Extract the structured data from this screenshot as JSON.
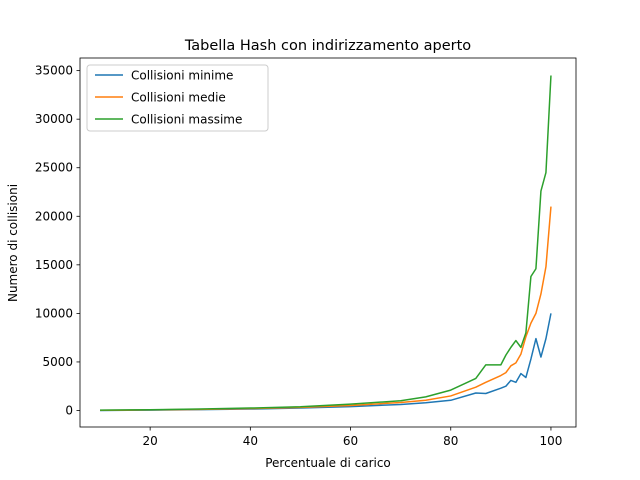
{
  "chart_data": {
    "type": "line",
    "title": "Tabella Hash con indirizzamento aperto",
    "xlabel": "Percentuale di carico",
    "ylabel": "Numero di collisioni",
    "xlim": [
      6,
      105
    ],
    "ylim": [
      -1700,
      36300
    ],
    "xticks": [
      20,
      40,
      60,
      80,
      100
    ],
    "yticks": [
      0,
      5000,
      10000,
      15000,
      20000,
      25000,
      30000,
      35000
    ],
    "grid": false,
    "legend_position": "top-left",
    "x": [
      10,
      20,
      30,
      40,
      50,
      60,
      70,
      75,
      80,
      85,
      87,
      90,
      91,
      92,
      93,
      94,
      95,
      96,
      97,
      98,
      99,
      100
    ],
    "series": [
      {
        "name": "Collisioni minime",
        "color": "#1f77b4",
        "values": [
          0,
          40,
          90,
          150,
          250,
          400,
          620,
          800,
          1050,
          1800,
          1750,
          2300,
          2500,
          3100,
          2900,
          3800,
          3400,
          5300,
          7400,
          5500,
          7400,
          10000
        ]
      },
      {
        "name": "Collisioni medie",
        "color": "#ff7f0e",
        "values": [
          20,
          60,
          120,
          200,
          320,
          520,
          820,
          1050,
          1500,
          2400,
          2900,
          3600,
          3900,
          4600,
          4900,
          5800,
          7600,
          9000,
          10000,
          12000,
          14800,
          21000
        ]
      },
      {
        "name": "Collisioni massime",
        "color": "#2ca02c",
        "values": [
          40,
          80,
          150,
          250,
          380,
          650,
          1000,
          1400,
          2100,
          3300,
          4700,
          4700,
          5700,
          6500,
          7200,
          6500,
          8000,
          13800,
          14600,
          22600,
          24500,
          34500
        ]
      }
    ]
  }
}
